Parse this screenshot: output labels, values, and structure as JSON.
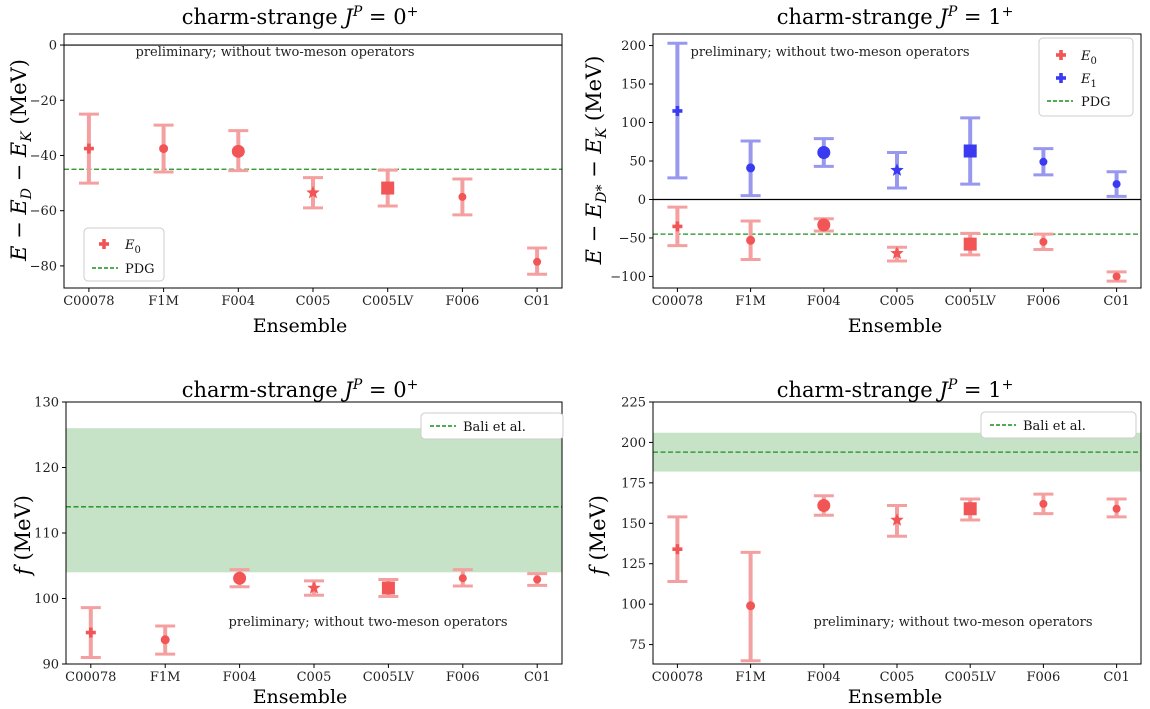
{
  "colors": {
    "red": "#f25555",
    "red_bar": "#f4a0a0",
    "blue": "#3a3af0",
    "blue_bar": "#9898ee",
    "green": "#1a8f1a",
    "band": "#c7e3c7"
  },
  "chart_data": [
    {
      "type": "scatter",
      "title": "charm-strange J^P = 0^+",
      "xlabel": "Ensemble",
      "ylabel": "E − E_D − E_K (MeV)",
      "annotation": "preliminary; without two-meson operators",
      "categories": [
        "C00078",
        "F1M",
        "F004",
        "C005",
        "C005LV",
        "F006",
        "C01"
      ],
      "ylim": [
        -88,
        4
      ],
      "yticks": [
        0,
        -20,
        -40,
        -60,
        -80
      ],
      "zero_line": 0,
      "reference": {
        "name": "PDG",
        "value": -45,
        "style": "dashed"
      },
      "legend": {
        "loc": "lower-left",
        "entries": [
          "E_0",
          "PDG"
        ]
      },
      "series": [
        {
          "name": "E_0",
          "values": [
            -37.5,
            -37.5,
            -38.5,
            -53.5,
            -51.8,
            -55,
            -78.5
          ],
          "err_low": [
            12.5,
            8.5,
            7,
            5.5,
            6.5,
            6.5,
            4.5
          ],
          "err_high": [
            12.5,
            8.5,
            7.5,
            5.5,
            6.5,
            6.5,
            5
          ],
          "markers": [
            "plus",
            "circle",
            "circle-lg",
            "star",
            "square",
            "circle-sm",
            "circle-sm"
          ]
        }
      ]
    },
    {
      "type": "scatter",
      "title": "charm-strange J^P = 1^+",
      "xlabel": "Ensemble",
      "ylabel": "E − E_D* − E_K (MeV)",
      "annotation": "preliminary; without two-meson operators",
      "categories": [
        "C00078",
        "F1M",
        "F004",
        "C005",
        "C005LV",
        "F006",
        "C01"
      ],
      "ylim": [
        -115,
        215
      ],
      "yticks": [
        200,
        150,
        100,
        50,
        0,
        -50,
        -100
      ],
      "zero_line": 0,
      "reference": {
        "name": "PDG",
        "value": -45,
        "style": "dashed"
      },
      "legend": {
        "loc": "upper-right",
        "entries": [
          "E_0",
          "E_1",
          "PDG"
        ]
      },
      "series": [
        {
          "name": "E_0",
          "values": [
            -35,
            -53,
            -33,
            -70,
            -58,
            -55,
            -100
          ],
          "err_low": [
            25,
            25,
            8,
            10,
            14,
            10,
            6
          ],
          "err_high": [
            25,
            25,
            8,
            8,
            14,
            10,
            6
          ],
          "markers": [
            "plus",
            "circle",
            "circle-lg",
            "star",
            "square",
            "circle-sm",
            "circle-sm"
          ]
        },
        {
          "name": "E_1",
          "values": [
            115,
            41,
            61,
            38,
            63,
            49,
            20
          ],
          "err_low": [
            87,
            36,
            18,
            23,
            43,
            17,
            16
          ],
          "err_high": [
            88,
            35,
            18,
            23,
            43,
            17,
            16
          ],
          "markers": [
            "plus",
            "circle",
            "circle-lg",
            "star",
            "square",
            "circle-sm",
            "circle-sm"
          ]
        }
      ]
    },
    {
      "type": "scatter",
      "title": "charm-strange J^P = 0^+",
      "xlabel": "Ensemble",
      "ylabel": "f (MeV)",
      "annotation": "preliminary; without two-meson operators",
      "categories": [
        "C00078",
        "F1M",
        "F004",
        "C005",
        "C005LV",
        "F006",
        "C01"
      ],
      "ylim": [
        90,
        130
      ],
      "yticks": [
        130,
        120,
        110,
        100,
        90
      ],
      "reference": {
        "name": "Bali et al.",
        "value": 114,
        "band": [
          104,
          126
        ],
        "style": "dashed"
      },
      "legend": {
        "loc": "upper-right",
        "entries": [
          "Bali et al."
        ]
      },
      "series": [
        {
          "name": "",
          "values": [
            94.8,
            93.7,
            103.1,
            101.6,
            101.6,
            103.1,
            102.9
          ],
          "err_low": [
            3.8,
            2.2,
            1.3,
            1.1,
            1.3,
            1.2,
            0.9
          ],
          "err_high": [
            3.8,
            2.1,
            1.3,
            1.1,
            1.3,
            1.3,
            0.9
          ],
          "markers": [
            "plus",
            "circle",
            "circle-lg",
            "star",
            "square",
            "circle-sm",
            "circle-sm"
          ]
        }
      ]
    },
    {
      "type": "scatter",
      "title": "charm-strange J^P = 1^+",
      "xlabel": "Ensemble",
      "ylabel": "f (MeV)",
      "annotation": "preliminary; without two-meson operators",
      "categories": [
        "C00078",
        "F1M",
        "F004",
        "C005",
        "C005LV",
        "F006",
        "C01"
      ],
      "ylim": [
        63,
        225
      ],
      "yticks": [
        225,
        200,
        175,
        150,
        125,
        100,
        75
      ],
      "reference": {
        "name": "Bali et al.",
        "value": 194,
        "band": [
          182,
          206
        ],
        "style": "dashed"
      },
      "legend": {
        "loc": "upper-right",
        "entries": [
          "Bali et al."
        ]
      },
      "series": [
        {
          "name": "",
          "values": [
            134,
            99,
            161,
            152,
            159,
            162,
            159
          ],
          "err_low": [
            20,
            34,
            6,
            10,
            7,
            6,
            5
          ],
          "err_high": [
            20,
            33,
            6,
            9,
            6,
            6,
            6
          ],
          "markers": [
            "plus",
            "circle",
            "circle-lg",
            "star",
            "square",
            "circle-sm",
            "circle-sm"
          ]
        }
      ]
    }
  ]
}
